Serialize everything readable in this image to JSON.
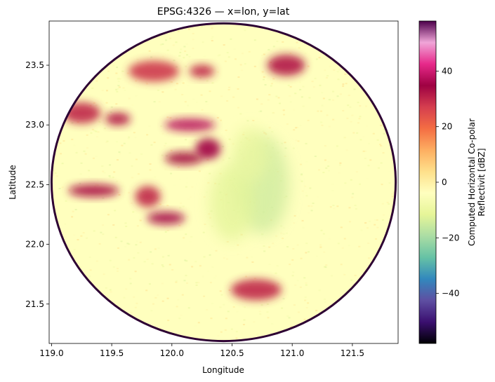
{
  "chart_data": {
    "type": "heatmap",
    "title": "EPSG:4326 — x=lon, y=lat",
    "xlabel": "Longitude",
    "ylabel": "Latitude",
    "xlim": [
      118.98,
      121.88
    ],
    "ylim": [
      21.17,
      23.87
    ],
    "xticks": [
      119.0,
      119.5,
      120.0,
      120.5,
      121.0,
      121.5
    ],
    "xtick_labels": [
      "119.0",
      "119.5",
      "120.0",
      "120.5",
      "121.0",
      "121.5"
    ],
    "yticks": [
      21.5,
      22.0,
      22.5,
      23.0,
      23.5
    ],
    "ytick_labels": [
      "21.5",
      "22.0",
      "22.5",
      "23.0",
      "23.5"
    ],
    "grid": false,
    "colormap": "Spectral_r",
    "colorbar": {
      "label_line1": "Computed Horizontal Co-polar",
      "label_line2": "Reflectivit [dBZ]",
      "range": [
        -58,
        58
      ],
      "ticks": [
        -40,
        -20,
        0,
        20,
        40
      ],
      "tick_labels": [
        "−40",
        "−20",
        "0",
        "20",
        "40"
      ],
      "stops": [
        "#000004",
        "#3b0f70",
        "#5e4fa2",
        "#3288bd",
        "#66c2a5",
        "#abdda4",
        "#e6f598",
        "#ffffbf",
        "#fee08b",
        "#fdae61",
        "#f46d43",
        "#d53e4f",
        "#9e0142",
        "#e7298a",
        "#f0a6d8",
        "#4d004b"
      ]
    },
    "radar": {
      "center": [
        120.43,
        22.52
      ],
      "radius_lon": 1.43,
      "radius_lat": 1.33,
      "ring_color": "#2d0033"
    },
    "echoes": [
      {
        "lon": 119.55,
        "lat": 23.05,
        "dbz": 32
      },
      {
        "lon": 119.25,
        "lat": 23.1,
        "dbz": 30
      },
      {
        "lon": 120.15,
        "lat": 23.0,
        "dbz": 38
      },
      {
        "lon": 120.3,
        "lat": 22.8,
        "dbz": 35
      },
      {
        "lon": 120.1,
        "lat": 22.72,
        "dbz": 34
      },
      {
        "lon": 119.85,
        "lat": 23.45,
        "dbz": 28
      },
      {
        "lon": 120.25,
        "lat": 23.45,
        "dbz": 30
      },
      {
        "lon": 120.95,
        "lat": 23.5,
        "dbz": 32
      },
      {
        "lon": 119.35,
        "lat": 22.45,
        "dbz": 33
      },
      {
        "lon": 119.8,
        "lat": 22.4,
        "dbz": 30
      },
      {
        "lon": 119.95,
        "lat": 22.22,
        "dbz": 36
      },
      {
        "lon": 120.7,
        "lat": 21.62,
        "dbz": 30
      }
    ],
    "clear_air": [
      {
        "lon": 120.75,
        "lat": 22.5,
        "dbz": -15
      },
      {
        "lon": 120.5,
        "lat": 22.35,
        "dbz": -12
      },
      {
        "lon": 120.65,
        "lat": 22.75,
        "dbz": -10
      }
    ]
  }
}
